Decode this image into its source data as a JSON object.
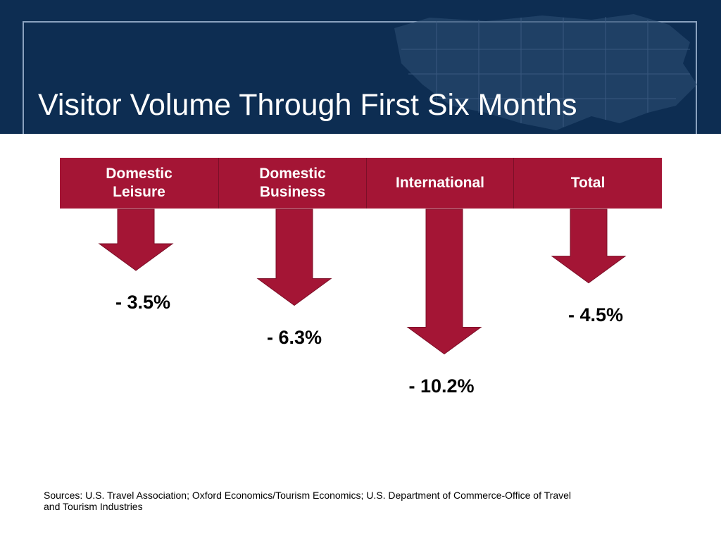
{
  "slide": {
    "title": "Visitor Volume Through First Six Months",
    "source": "Sources: U.S. Travel Association; Oxford Economics/Tourism Economics; U.S. Department of Commerce-Office of Travel and Tourism Industries"
  },
  "colors": {
    "header_bg": "#0d2d52",
    "accent_red": "#a41535",
    "text": "#000000"
  },
  "chart_data": {
    "type": "bar",
    "title": "Visitor Volume Through First Six Months",
    "categories": [
      "Domestic\nLeisure",
      "Domestic\nBusiness",
      "International",
      "Total"
    ],
    "values": [
      -3.5,
      -6.3,
      -10.2,
      -4.5
    ],
    "value_labels": [
      "- 3.5%",
      "- 6.3%",
      "- 10.2%",
      "- 4.5%"
    ],
    "unit": "%",
    "mark": "down-arrow",
    "grid": false,
    "legend": "none"
  }
}
